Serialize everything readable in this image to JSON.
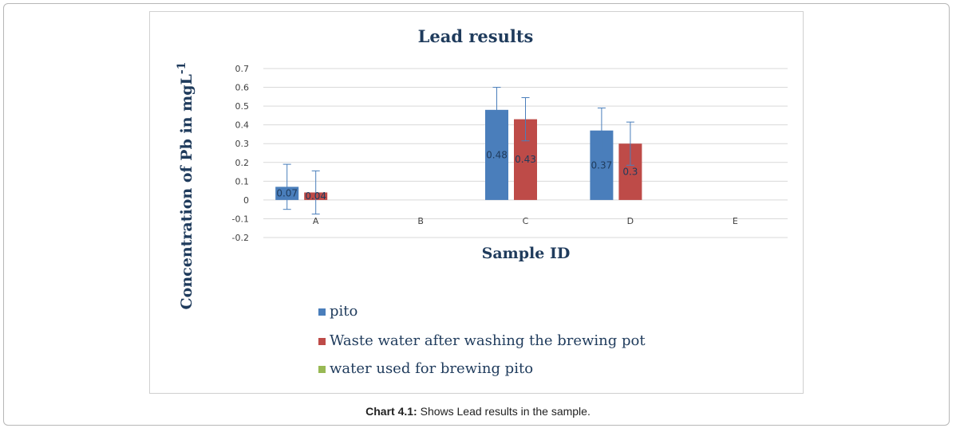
{
  "caption": {
    "label": "Chart 4.1:",
    "text": " Shows Lead results in the sample."
  },
  "chart_data": {
    "type": "bar",
    "title": "Lead results",
    "xlabel": "Sample ID",
    "ylabel_main": "Concentration of Pb in mgL",
    "ylabel_sup": "-1",
    "categories": [
      "A",
      "B",
      "C",
      "D",
      "E"
    ],
    "ylim": [
      -0.2,
      0.7
    ],
    "yticks": [
      "-0.2",
      "-0.1",
      "0",
      "0.1",
      "0.2",
      "0.3",
      "0.4",
      "0.5",
      "0.6",
      "0.7"
    ],
    "grid": true,
    "legend_position": "bottom-left",
    "series": [
      {
        "name": "pito",
        "color": "#4a7ebb",
        "values": [
          0.07,
          null,
          0.48,
          0.37,
          null
        ],
        "labels": [
          "0.07",
          "",
          "0.48",
          "0.37",
          ""
        ],
        "error": [
          0.12,
          null,
          0.12,
          0.12,
          null
        ]
      },
      {
        "name": "Waste water after washing the brewing pot",
        "color": "#be4b48",
        "values": [
          0.04,
          null,
          0.43,
          0.3,
          null
        ],
        "labels": [
          "0.04",
          "",
          "0.43",
          "0.3",
          ""
        ],
        "error": [
          0.115,
          null,
          0.115,
          0.115,
          null
        ]
      },
      {
        "name": "water used for brewing pito",
        "color": "#98b954",
        "values": [
          null,
          null,
          null,
          null,
          null
        ],
        "labels": [
          "",
          "",
          "",
          "",
          ""
        ],
        "error": [
          null,
          null,
          null,
          null,
          null
        ]
      }
    ]
  }
}
